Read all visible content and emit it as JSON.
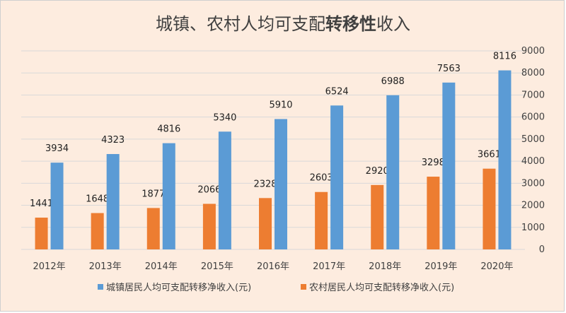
{
  "chart_data": {
    "type": "bar",
    "title_plain": "城镇、农村人均可支配",
    "title_bold": "转移性",
    "title_tail": "收入",
    "categories": [
      "2012年",
      "2013年",
      "2014年",
      "2015年",
      "2016年",
      "2017年",
      "2018年",
      "2019年",
      "2020年"
    ],
    "series": [
      {
        "name": "农村居民人均可支配转移净收入(元)",
        "color": "#ed7d31",
        "values": [
          1441,
          1648,
          1877,
          2066,
          2328,
          2603,
          2920,
          3298,
          3661
        ]
      },
      {
        "name": "城镇居民人均可支配转移净收入(元)",
        "color": "#5b9bd5",
        "values": [
          3934,
          4323,
          4816,
          5340,
          5910,
          6524,
          6988,
          7563,
          8116
        ]
      }
    ],
    "y_axis": {
      "position": "right",
      "ylim": [
        0,
        9000
      ],
      "ticks": [
        0,
        1000,
        2000,
        3000,
        4000,
        5000,
        6000,
        7000,
        8000,
        9000
      ]
    },
    "grid": true,
    "legend": "bottom",
    "legend_order": [
      "城镇居民人均可支配转移净收入(元)",
      "农村居民人均可支配转移净收入(元)"
    ]
  }
}
